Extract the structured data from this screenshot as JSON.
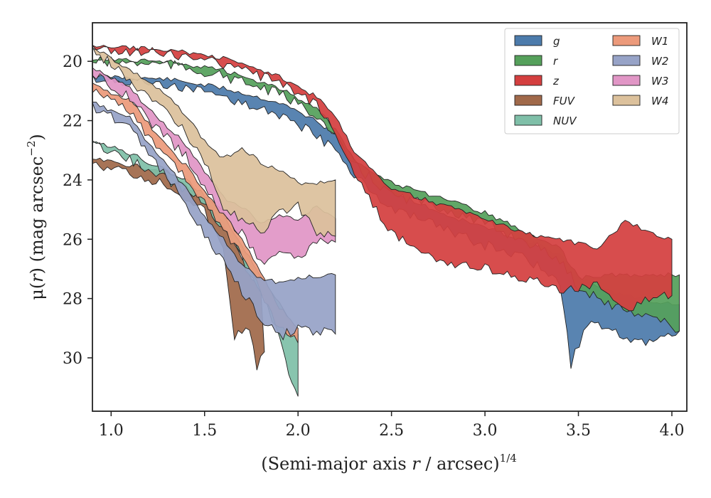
{
  "chart_data": {
    "type": "area",
    "xlabel": {
      "prefix": "(Semi-major axis ",
      "var": "r",
      "suffix": " / arcsec)",
      "sup": "1/4"
    },
    "ylabel": {
      "prefix": "μ(",
      "var": "r",
      "suffix": ") (mag arcsec",
      "sup": "−2",
      "close": ")"
    },
    "xlim": [
      0.9,
      4.08
    ],
    "ylim": [
      31.8,
      18.7
    ],
    "y_inverted": true,
    "xticks": [
      1.0,
      1.5,
      2.0,
      2.5,
      3.0,
      3.5,
      4.0
    ],
    "xtick_labels": [
      "1.0",
      "1.5",
      "2.0",
      "2.5",
      "3.0",
      "3.5",
      "4.0"
    ],
    "yticks": [
      20,
      22,
      24,
      26,
      28,
      30
    ],
    "ytick_labels": [
      "20",
      "22",
      "24",
      "26",
      "28",
      "30"
    ],
    "legend_position": "top-right",
    "legend_columns": 2,
    "series": [
      {
        "name": "g",
        "color": "#4c7bab",
        "upper": [
          [
            0.9,
            20.5
          ],
          [
            1.3,
            20.6
          ],
          [
            1.6,
            20.9
          ],
          [
            1.9,
            21.4
          ],
          [
            2.1,
            22.0
          ],
          [
            2.2,
            22.5
          ],
          [
            2.3,
            23.3
          ],
          [
            2.5,
            24.4
          ],
          [
            2.8,
            25.2
          ],
          [
            3.0,
            25.6
          ],
          [
            3.2,
            26.0
          ],
          [
            3.4,
            26.5
          ],
          [
            3.5,
            27.3
          ],
          [
            3.7,
            27.8
          ],
          [
            3.9,
            28.1
          ],
          [
            4.04,
            28.2
          ]
        ],
        "lower": [
          [
            0.9,
            20.6
          ],
          [
            1.3,
            20.8
          ],
          [
            1.6,
            21.2
          ],
          [
            1.9,
            21.8
          ],
          [
            2.1,
            22.5
          ],
          [
            2.2,
            23.0
          ],
          [
            2.3,
            23.8
          ],
          [
            2.5,
            25.0
          ],
          [
            2.8,
            25.7
          ],
          [
            3.0,
            26.2
          ],
          [
            3.2,
            26.6
          ],
          [
            3.4,
            27.4
          ],
          [
            3.46,
            30.2
          ],
          [
            3.55,
            28.8
          ],
          [
            3.7,
            29.2
          ],
          [
            3.9,
            29.5
          ],
          [
            4.04,
            29.1
          ]
        ]
      },
      {
        "name": "r",
        "color": "#55a05b",
        "upper": [
          [
            0.9,
            19.9
          ],
          [
            1.3,
            20.0
          ],
          [
            1.6,
            20.3
          ],
          [
            1.9,
            20.9
          ],
          [
            2.1,
            21.6
          ],
          [
            2.2,
            22.3
          ],
          [
            2.3,
            23.3
          ],
          [
            2.5,
            24.1
          ],
          [
            2.8,
            24.7
          ],
          [
            3.0,
            25.1
          ],
          [
            3.2,
            25.7
          ],
          [
            3.4,
            26.3
          ],
          [
            3.5,
            27.3
          ],
          [
            3.7,
            27.2
          ],
          [
            3.9,
            27.2
          ],
          [
            4.04,
            27.2
          ]
        ],
        "lower": [
          [
            0.9,
            20.0
          ],
          [
            1.3,
            20.1
          ],
          [
            1.6,
            20.5
          ],
          [
            1.9,
            21.1
          ],
          [
            2.1,
            21.8
          ],
          [
            2.2,
            22.6
          ],
          [
            2.3,
            23.5
          ],
          [
            2.5,
            24.5
          ],
          [
            2.8,
            25.0
          ],
          [
            3.0,
            25.5
          ],
          [
            3.2,
            26.0
          ],
          [
            3.4,
            26.7
          ],
          [
            3.5,
            27.6
          ],
          [
            3.7,
            28.3
          ],
          [
            3.9,
            28.6
          ],
          [
            4.04,
            29.1
          ]
        ]
      },
      {
        "name": "z",
        "color": "#d43f3f",
        "upper": [
          [
            0.9,
            19.5
          ],
          [
            1.3,
            19.6
          ],
          [
            1.6,
            19.9
          ],
          [
            1.9,
            20.5
          ],
          [
            2.1,
            21.2
          ],
          [
            2.2,
            21.9
          ],
          [
            2.3,
            23.0
          ],
          [
            2.5,
            24.3
          ],
          [
            2.8,
            24.9
          ],
          [
            3.0,
            25.3
          ],
          [
            3.2,
            25.8
          ],
          [
            3.4,
            26.0
          ],
          [
            3.6,
            26.3
          ],
          [
            3.75,
            25.4
          ],
          [
            3.9,
            25.8
          ],
          [
            4.0,
            26.0
          ]
        ],
        "lower": [
          [
            0.9,
            19.6
          ],
          [
            1.3,
            19.7
          ],
          [
            1.6,
            20.1
          ],
          [
            1.9,
            20.7
          ],
          [
            2.1,
            21.5
          ],
          [
            2.2,
            22.4
          ],
          [
            2.3,
            23.8
          ],
          [
            2.5,
            25.8
          ],
          [
            2.8,
            26.8
          ],
          [
            3.0,
            27.0
          ],
          [
            3.2,
            27.3
          ],
          [
            3.4,
            27.7
          ],
          [
            3.6,
            27.6
          ],
          [
            3.75,
            28.4
          ],
          [
            3.9,
            27.9
          ],
          [
            4.0,
            27.9
          ]
        ]
      },
      {
        "name": "FUV",
        "color": "#a0694a",
        "upper": [
          [
            0.9,
            23.3
          ],
          [
            1.1,
            23.5
          ],
          [
            1.3,
            23.7
          ],
          [
            1.4,
            24.2
          ],
          [
            1.5,
            24.6
          ],
          [
            1.6,
            25.5
          ],
          [
            1.7,
            26.6
          ],
          [
            1.75,
            27.4
          ],
          [
            1.8,
            27.6
          ]
        ],
        "lower": [
          [
            0.9,
            23.4
          ],
          [
            1.1,
            23.8
          ],
          [
            1.3,
            24.2
          ],
          [
            1.4,
            24.6
          ],
          [
            1.5,
            25.1
          ],
          [
            1.6,
            26.4
          ],
          [
            1.66,
            29.3
          ],
          [
            1.74,
            28.9
          ],
          [
            1.78,
            30.3
          ],
          [
            1.82,
            29.8
          ]
        ]
      },
      {
        "name": "NUV",
        "color": "#7fbfa8",
        "upper": [
          [
            0.9,
            22.7
          ],
          [
            1.1,
            23.1
          ],
          [
            1.3,
            23.7
          ],
          [
            1.4,
            24.0
          ],
          [
            1.5,
            24.5
          ],
          [
            1.6,
            25.2
          ],
          [
            1.7,
            26.2
          ],
          [
            1.8,
            27.2
          ],
          [
            1.9,
            28.1
          ],
          [
            2.0,
            29.2
          ]
        ],
        "lower": [
          [
            0.9,
            22.8
          ],
          [
            1.1,
            23.3
          ],
          [
            1.3,
            24.0
          ],
          [
            1.4,
            24.3
          ],
          [
            1.5,
            24.8
          ],
          [
            1.6,
            25.6
          ],
          [
            1.7,
            26.7
          ],
          [
            1.8,
            27.8
          ],
          [
            1.9,
            29.2
          ],
          [
            1.95,
            30.7
          ],
          [
            2.0,
            31.3
          ]
        ]
      },
      {
        "name": "W1",
        "color": "#ec9a7b",
        "upper": [
          [
            0.9,
            20.8
          ],
          [
            1.1,
            21.3
          ],
          [
            1.2,
            22.1
          ],
          [
            1.3,
            22.9
          ],
          [
            1.4,
            23.5
          ],
          [
            1.5,
            24.4
          ],
          [
            1.6,
            25.1
          ],
          [
            1.7,
            26.0
          ],
          [
            1.8,
            27.1
          ],
          [
            1.9,
            28.3
          ],
          [
            2.0,
            29.0
          ]
        ],
        "lower": [
          [
            0.9,
            21.0
          ],
          [
            1.1,
            21.7
          ],
          [
            1.2,
            22.5
          ],
          [
            1.3,
            23.2
          ],
          [
            1.4,
            23.9
          ],
          [
            1.5,
            24.8
          ],
          [
            1.6,
            25.6
          ],
          [
            1.7,
            26.6
          ],
          [
            1.8,
            27.7
          ],
          [
            1.9,
            29.0
          ],
          [
            2.0,
            29.5
          ]
        ]
      },
      {
        "name": "W2",
        "color": "#97a3c7",
        "upper": [
          [
            0.9,
            21.4
          ],
          [
            1.1,
            21.9
          ],
          [
            1.2,
            22.8
          ],
          [
            1.3,
            23.5
          ],
          [
            1.4,
            24.3
          ],
          [
            1.5,
            25.2
          ],
          [
            1.6,
            26.0
          ],
          [
            1.7,
            26.9
          ],
          [
            1.8,
            27.3
          ],
          [
            1.9,
            27.5
          ],
          [
            2.0,
            27.3
          ],
          [
            2.2,
            27.2
          ]
        ],
        "lower": [
          [
            0.9,
            21.5
          ],
          [
            1.1,
            22.2
          ],
          [
            1.2,
            23.2
          ],
          [
            1.3,
            23.9
          ],
          [
            1.4,
            24.8
          ],
          [
            1.5,
            25.9
          ],
          [
            1.6,
            26.8
          ],
          [
            1.7,
            27.8
          ],
          [
            1.8,
            28.6
          ],
          [
            1.9,
            29.3
          ],
          [
            2.0,
            29.0
          ],
          [
            2.2,
            29.2
          ]
        ]
      },
      {
        "name": "W3",
        "color": "#e196c6",
        "upper": [
          [
            0.9,
            20.2
          ],
          [
            1.1,
            20.9
          ],
          [
            1.2,
            21.6
          ],
          [
            1.3,
            22.2
          ],
          [
            1.4,
            22.8
          ],
          [
            1.5,
            23.7
          ],
          [
            1.6,
            24.6
          ],
          [
            1.7,
            24.9
          ],
          [
            1.8,
            25.5
          ],
          [
            1.9,
            25.2
          ],
          [
            2.0,
            25.3
          ],
          [
            2.1,
            24.9
          ],
          [
            2.2,
            25.3
          ]
        ],
        "lower": [
          [
            0.9,
            20.4
          ],
          [
            1.1,
            21.2
          ],
          [
            1.2,
            22.0
          ],
          [
            1.3,
            22.6
          ],
          [
            1.4,
            23.2
          ],
          [
            1.5,
            24.3
          ],
          [
            1.6,
            25.2
          ],
          [
            1.7,
            25.8
          ],
          [
            1.8,
            26.8
          ],
          [
            1.9,
            26.3
          ],
          [
            2.0,
            26.7
          ],
          [
            2.1,
            26.1
          ],
          [
            2.2,
            26.1
          ]
        ]
      },
      {
        "name": "W4",
        "color": "#dcc19c",
        "upper": [
          [
            0.9,
            19.5
          ],
          [
            1.1,
            20.3
          ],
          [
            1.2,
            20.7
          ],
          [
            1.3,
            21.2
          ],
          [
            1.4,
            21.8
          ],
          [
            1.5,
            22.7
          ],
          [
            1.6,
            23.3
          ],
          [
            1.7,
            22.9
          ],
          [
            1.8,
            23.4
          ],
          [
            1.9,
            23.7
          ],
          [
            2.0,
            24.1
          ],
          [
            2.1,
            24.1
          ],
          [
            2.2,
            24.0
          ]
        ],
        "lower": [
          [
            0.9,
            19.6
          ],
          [
            1.1,
            20.6
          ],
          [
            1.2,
            21.2
          ],
          [
            1.3,
            21.7
          ],
          [
            1.4,
            22.4
          ],
          [
            1.5,
            23.4
          ],
          [
            1.6,
            25.0
          ],
          [
            1.7,
            25.3
          ],
          [
            1.8,
            25.8
          ],
          [
            1.9,
            25.0
          ],
          [
            2.0,
            24.9
          ],
          [
            2.1,
            25.8
          ],
          [
            2.2,
            25.9
          ]
        ]
      }
    ]
  }
}
